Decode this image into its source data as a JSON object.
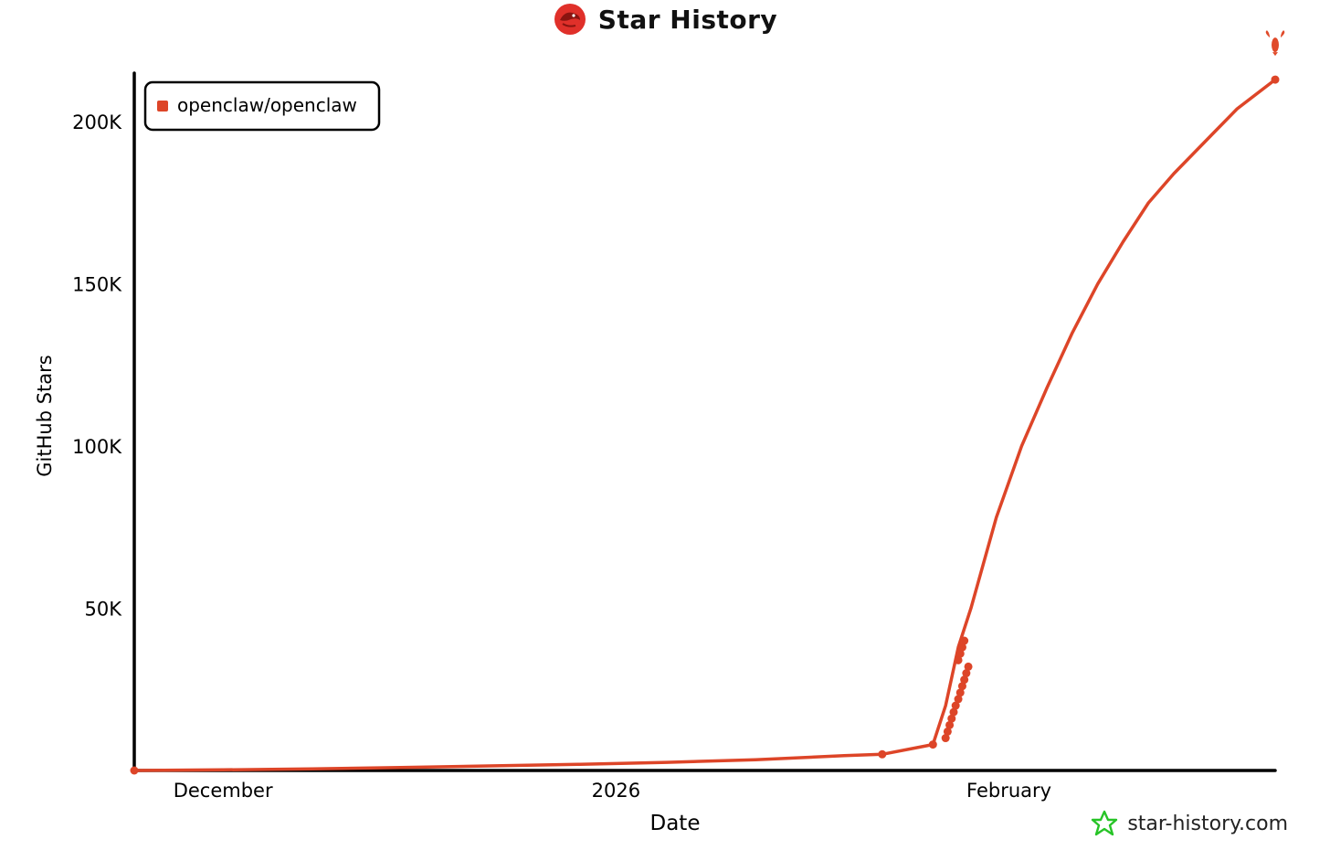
{
  "header": {
    "title": "Star History"
  },
  "footer": {
    "brand": "star-history.com"
  },
  "chart_data": {
    "type": "line",
    "title": "Star History",
    "xlabel": "Date",
    "ylabel": "GitHub Stars",
    "x_tick_labels": [
      {
        "date": "2025-12-01",
        "label": "December"
      },
      {
        "date": "2026-01-01",
        "label": "2026"
      },
      {
        "date": "2026-02-01",
        "label": "February"
      }
    ],
    "y_tick_labels": [
      {
        "value": 50000,
        "label": "50K"
      },
      {
        "value": 100000,
        "label": "100K"
      },
      {
        "value": 150000,
        "label": "150K"
      },
      {
        "value": 200000,
        "label": "200K"
      }
    ],
    "xlim": [
      "2025-11-24",
      "2026-02-22"
    ],
    "ylim": [
      0,
      215000
    ],
    "grid": false,
    "legend_position": "top-left",
    "series": [
      {
        "name": "openclaw/openclaw",
        "color": "#dd4528",
        "marker_icon": "lobster-icon",
        "points": [
          {
            "date": "2025-11-24",
            "value": 0
          },
          {
            "date": "2025-12-01",
            "value": 200
          },
          {
            "date": "2025-12-08",
            "value": 500
          },
          {
            "date": "2025-12-15",
            "value": 900
          },
          {
            "date": "2025-12-22",
            "value": 1400
          },
          {
            "date": "2025-12-29",
            "value": 1900
          },
          {
            "date": "2026-01-05",
            "value": 2500
          },
          {
            "date": "2026-01-12",
            "value": 3300
          },
          {
            "date": "2026-01-19",
            "value": 4600
          },
          {
            "date": "2026-01-22",
            "value": 5000
          },
          {
            "date": "2026-01-26",
            "value": 8000
          },
          {
            "date": "2026-01-27",
            "value": 20000
          },
          {
            "date": "2026-01-28",
            "value": 38000
          },
          {
            "date": "2026-01-29",
            "value": 50000
          },
          {
            "date": "2026-01-31",
            "value": 78000
          },
          {
            "date": "2026-02-02",
            "value": 100000
          },
          {
            "date": "2026-02-04",
            "value": 118000
          },
          {
            "date": "2026-02-06",
            "value": 135000
          },
          {
            "date": "2026-02-08",
            "value": 150000
          },
          {
            "date": "2026-02-10",
            "value": 163000
          },
          {
            "date": "2026-02-12",
            "value": 175000
          },
          {
            "date": "2026-02-14",
            "value": 184000
          },
          {
            "date": "2026-02-17",
            "value": 196000
          },
          {
            "date": "2026-02-19",
            "value": 204000
          },
          {
            "date": "2026-02-22",
            "value": 213000
          }
        ],
        "dense_points": [
          {
            "date": "2026-01-27",
            "value": 10000
          },
          {
            "date": "2026-01-27",
            "value": 12000
          },
          {
            "date": "2026-01-27",
            "value": 14000
          },
          {
            "date": "2026-01-27",
            "value": 16000
          },
          {
            "date": "2026-01-27",
            "value": 18000
          },
          {
            "date": "2026-01-27",
            "value": 20000
          },
          {
            "date": "2026-01-28",
            "value": 22000
          },
          {
            "date": "2026-01-28",
            "value": 24000
          },
          {
            "date": "2026-01-28",
            "value": 26000
          },
          {
            "date": "2026-01-28",
            "value": 28000
          },
          {
            "date": "2026-01-28",
            "value": 30000
          },
          {
            "date": "2026-01-28",
            "value": 32000
          },
          {
            "date": "2026-01-28",
            "value": 34000
          },
          {
            "date": "2026-01-28",
            "value": 36000
          },
          {
            "date": "2026-01-28",
            "value": 38000
          },
          {
            "date": "2026-01-28",
            "value": 40000
          }
        ]
      }
    ]
  }
}
